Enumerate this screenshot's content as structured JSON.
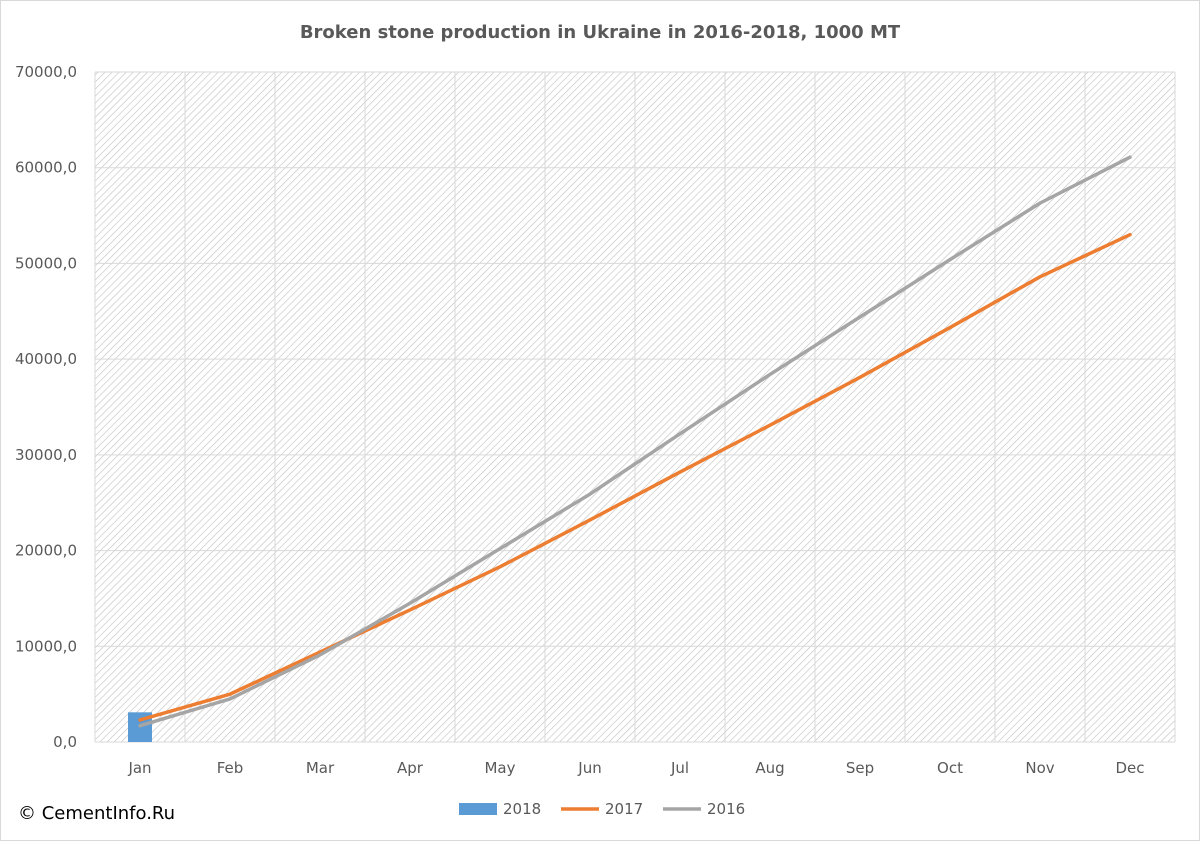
{
  "credit": "© CementInfo.Ru",
  "colors": {
    "series_2018": "#5b9bd5",
    "series_2017": "#ed7d31",
    "series_2016": "#a5a5a5",
    "grid": "#d9d9d9",
    "text": "#595959",
    "hatch": "#c0c0c0"
  },
  "chart_data": {
    "type": "bar",
    "title": "Broken stone production in Ukraine in 2016-2018, 1000 MT",
    "xlabel": "",
    "ylabel": "",
    "categories": [
      "Jan",
      "Feb",
      "Mar",
      "Apr",
      "May",
      "Jun",
      "Jul",
      "Aug",
      "Sep",
      "Oct",
      "Nov",
      "Dec"
    ],
    "ylim": [
      0,
      70000
    ],
    "y_ticks": [
      "0,0",
      "10000,0",
      "20000,0",
      "30000,0",
      "40000,0",
      "50000,0",
      "60000,0",
      "70000,0"
    ],
    "grid": true,
    "legend_position": "bottom",
    "plot_background": "diagonal hatch",
    "series": [
      {
        "name": "2018",
        "kind": "bar",
        "color": "#5b9bd5",
        "values": [
          3100,
          null,
          null,
          null,
          null,
          null,
          null,
          null,
          null,
          null,
          null,
          null
        ]
      },
      {
        "name": "2017",
        "kind": "line",
        "color": "#ed7d31",
        "values": [
          2300,
          5000,
          9400,
          13800,
          18300,
          23200,
          28200,
          33100,
          38100,
          43300,
          48600,
          53000
        ]
      },
      {
        "name": "2016",
        "kind": "line",
        "color": "#a5a5a5",
        "values": [
          1700,
          4500,
          9100,
          14500,
          20200,
          25900,
          32200,
          38400,
          44400,
          50400,
          56300,
          61100
        ]
      }
    ]
  }
}
